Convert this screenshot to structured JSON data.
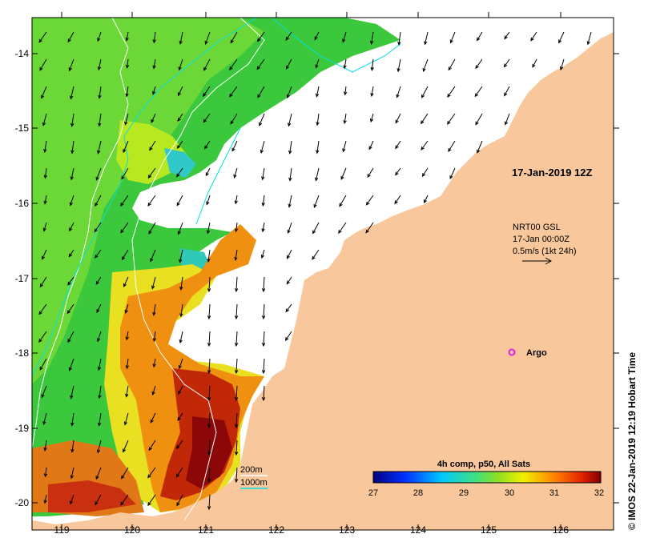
{
  "map": {
    "lon_ticks": [
      "119",
      "120",
      "121",
      "122",
      "123",
      "124",
      "125",
      "126"
    ],
    "lat_ticks": [
      "-14",
      "-15",
      "-16",
      "-17",
      "-18",
      "-19",
      "-20"
    ],
    "date_label": "17-Jan-2019 12Z",
    "current_legend": {
      "line1": "NRT00 GSL",
      "line2": "17-Jan 00:00Z",
      "line3": "0.5m/s (1kt 24h)"
    },
    "argo_label": "Argo",
    "isobath_legend": {
      "depth_200": "200m",
      "depth_1000": "1000m"
    },
    "colorbar": {
      "title": "4h comp, p50, All Sats",
      "ticks": [
        "27",
        "28",
        "29",
        "30",
        "31",
        "32"
      ]
    },
    "credit": "© IMOS 22-Jan-2019 12:19 Hobart Time",
    "colors": {
      "land": "#f8c89c",
      "isobath_200": "#ffffff",
      "isobath_1000": "#00e0e0",
      "argo": "#e020e0"
    }
  }
}
